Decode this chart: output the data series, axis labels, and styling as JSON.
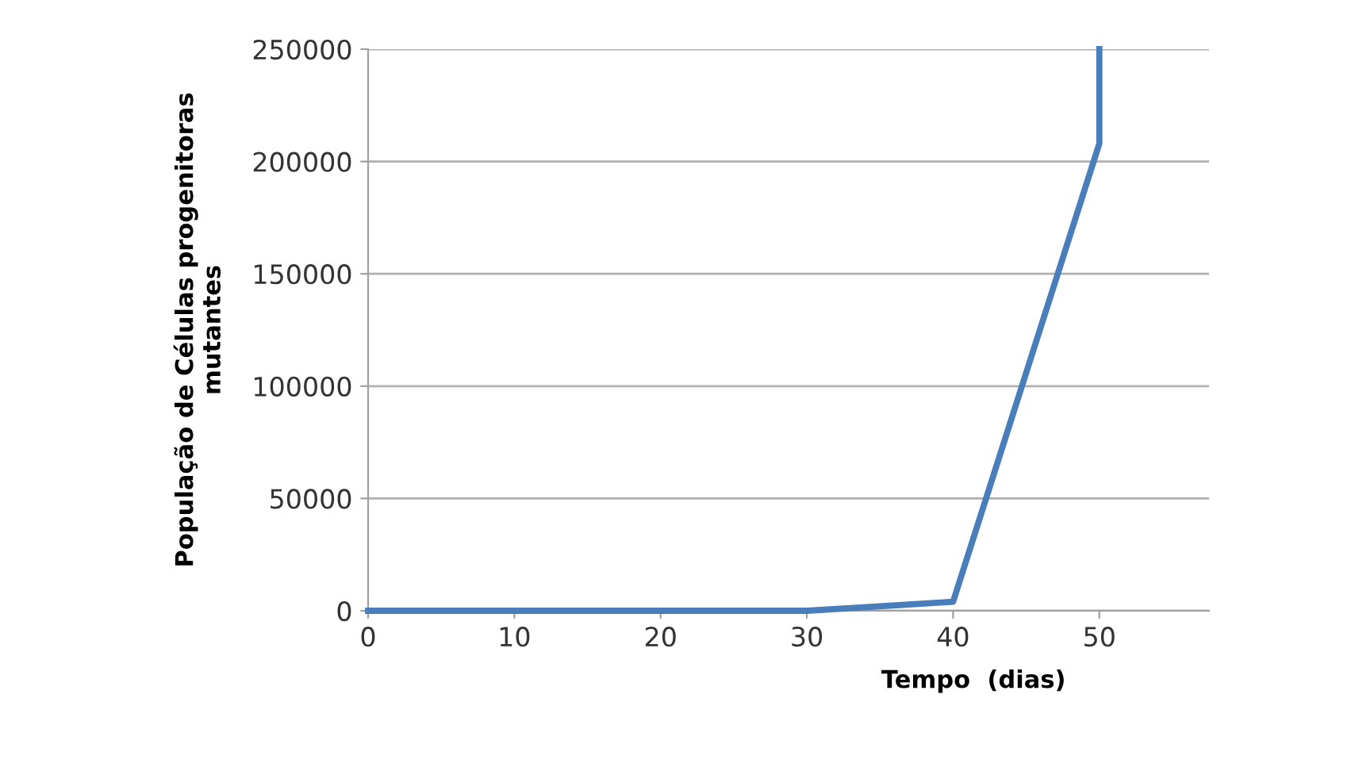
{
  "chart_data": {
    "type": "line",
    "xlabel": "Tempo  (dias)",
    "ylabel": "População de Células progenitoras\nmutantes",
    "x": [
      0,
      10,
      20,
      30,
      40,
      50,
      50
    ],
    "series": [
      {
        "color": "#4a7ebb",
        "values": [
          0,
          0,
          0,
          0,
          4000,
          208000,
          250000
        ]
      }
    ],
    "xlim": [
      0,
      57.5
    ],
    "xticks": [
      0,
      10,
      20,
      30,
      40,
      50
    ],
    "ylim": [
      0,
      250000
    ],
    "yticks": [
      0,
      50000,
      100000,
      150000,
      200000,
      250000
    ],
    "grid": "y",
    "marker": "none",
    "line_style": "solid"
  }
}
